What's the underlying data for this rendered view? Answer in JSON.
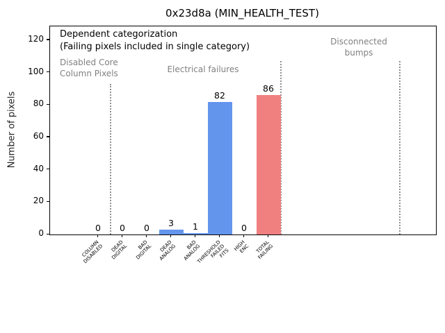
{
  "figure": {
    "title": "0x23d8a (MIN_HEALTH_TEST)"
  },
  "annotations": {
    "dependent_line1": "Dependent categorization",
    "dependent_line2": "(Failing pixels included in single category)",
    "disabled_core_line1": "Disabled Core",
    "disabled_core_line2": "Column Pixels",
    "electrical": "Electrical failures",
    "disconnected_line1": "Disconnected",
    "disconnected_line2": "bumps"
  },
  "chart_data": {
    "type": "bar",
    "title": "0x23d8a (MIN_HEALTH_TEST)",
    "xlabel": "",
    "ylabel": "Number of pixels",
    "categories": [
      "COLUMN\nDISABLED",
      "DEAD\nDIGITAL",
      "BAD\nDIGITAL",
      "DEAD\nANALOG",
      "BAD\nANALOG",
      "THRESHOLD\nFAILED\nFITS",
      "HIGH\nENC",
      "TOTAL\nFAILING"
    ],
    "values": [
      0,
      0,
      0,
      3,
      1,
      82,
      0,
      86
    ],
    "value_labels": [
      "0",
      "0",
      "0",
      "3",
      "1",
      "82",
      "0",
      "86"
    ],
    "bar_colors": [
      "#6495ed",
      "#6495ed",
      "#6495ed",
      "#6495ed",
      "#6495ed",
      "#6495ed",
      "#6495ed",
      "#f08080"
    ],
    "yticks": [
      0,
      20,
      40,
      60,
      80,
      100,
      120
    ],
    "ylim": [
      0,
      128.5
    ],
    "grid": false,
    "legend": null,
    "separators": [
      {
        "x": 0.5,
        "ymax": 93
      },
      {
        "x": 7.5,
        "ymax": 107
      },
      {
        "x": 12.4,
        "ymax": 107
      }
    ],
    "separator_color": "#909090",
    "group_labels": [
      "Disabled Core Column Pixels",
      "Electrical failures",
      "Disconnected bumps"
    ],
    "annotation_color_gray": "#808080",
    "bar_color_blue": "#6495ed",
    "bar_color_red": "#f08080"
  }
}
